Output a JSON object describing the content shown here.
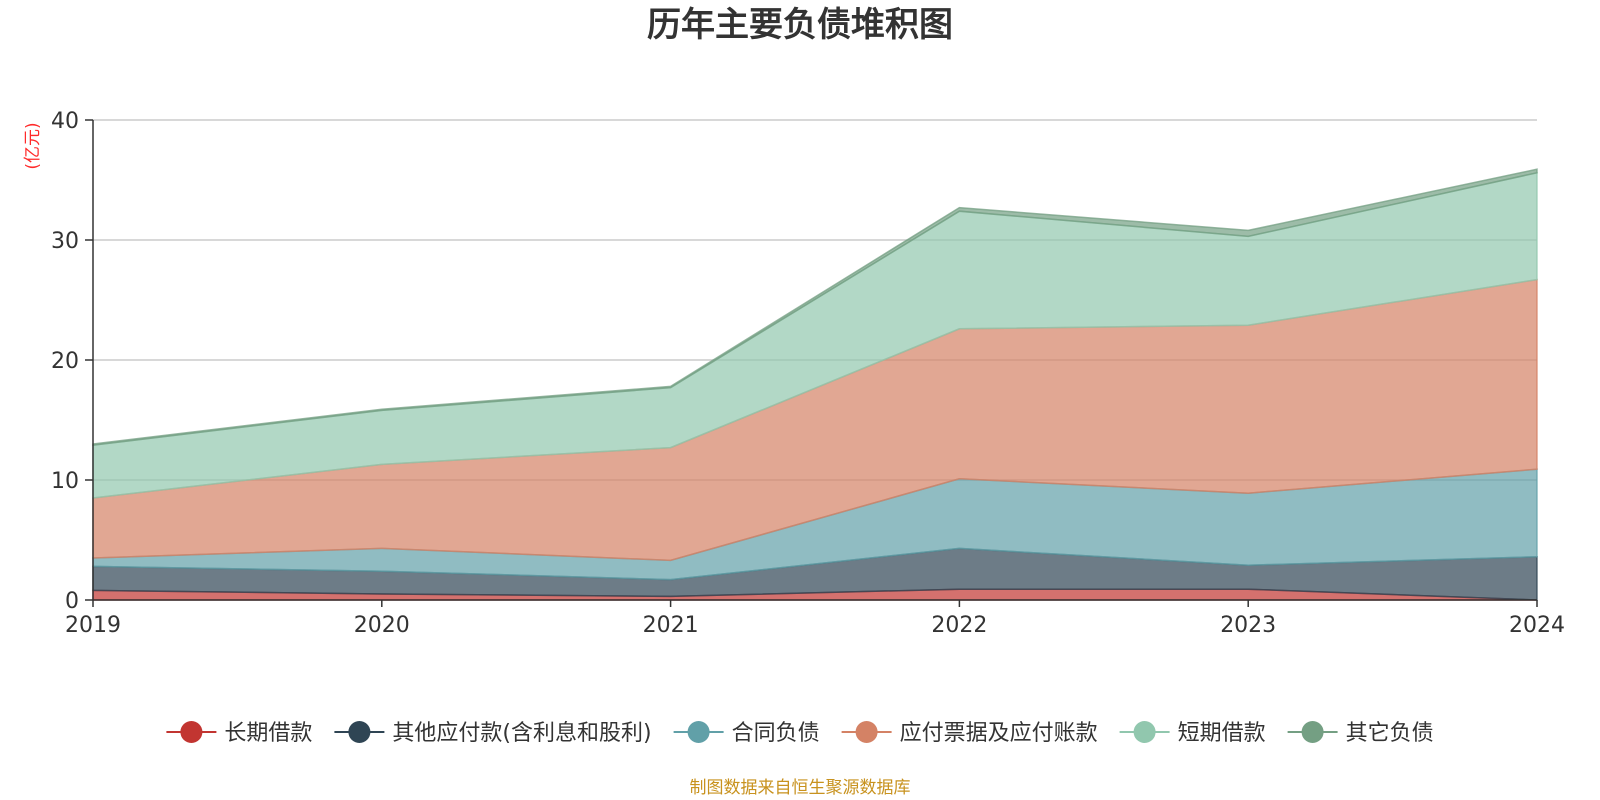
{
  "chart_data": {
    "type": "area",
    "stacked": true,
    "title": "历年主要负债堆积图",
    "unit_label": "(亿元)",
    "source_note": "制图数据来自恒生聚源数据库",
    "x": [
      "2019",
      "2020",
      "2021",
      "2022",
      "2023",
      "2024"
    ],
    "ylim": [
      0,
      40
    ],
    "yticks": [
      0,
      10,
      20,
      30,
      40
    ],
    "grid": true,
    "legend_position": "bottom",
    "series": [
      {
        "name": "长期借款",
        "color": "#c23531",
        "values": [
          0.8,
          0.5,
          0.3,
          0.9,
          0.9,
          0.0
        ]
      },
      {
        "name": "其他应付款(含利息和股利)",
        "color": "#2f4554",
        "values": [
          2.0,
          1.9,
          1.4,
          3.4,
          2.0,
          3.6
        ]
      },
      {
        "name": "合同负债",
        "color": "#61a0a8",
        "values": [
          0.7,
          1.9,
          1.6,
          5.8,
          6.0,
          7.3
        ]
      },
      {
        "name": "应付票据及应付账款",
        "color": "#d48265",
        "values": [
          5.0,
          7.0,
          9.4,
          12.5,
          14.0,
          15.8
        ]
      },
      {
        "name": "短期借款",
        "color": "#91c7ae",
        "values": [
          4.4,
          4.5,
          5.0,
          9.8,
          7.4,
          8.9
        ]
      },
      {
        "name": "其它负债",
        "color": "#749f83",
        "values": [
          0.1,
          0.1,
          0.1,
          0.3,
          0.5,
          0.3
        ]
      }
    ]
  }
}
